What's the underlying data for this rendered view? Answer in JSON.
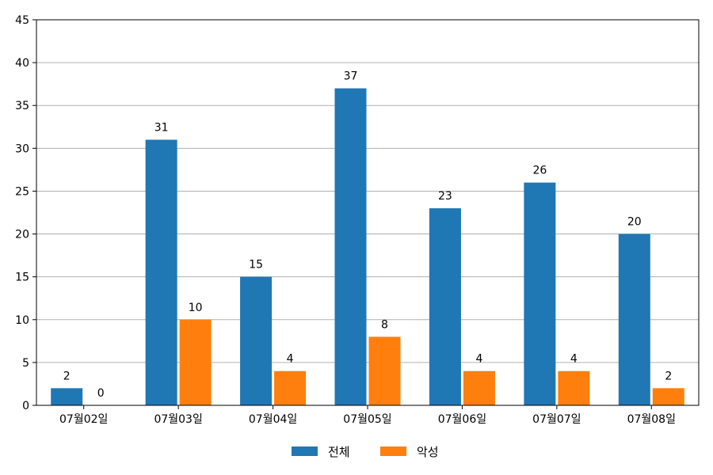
{
  "chart_data": {
    "type": "bar",
    "categories": [
      "07월02일",
      "07월03일",
      "07월04일",
      "07월05일",
      "07월06일",
      "07월07일",
      "07월08일"
    ],
    "series": [
      {
        "name": "전체",
        "color": "#1f77b4",
        "values": [
          2,
          31,
          15,
          37,
          23,
          26,
          20
        ]
      },
      {
        "name": "악성",
        "color": "#ff7f0e",
        "values": [
          0,
          10,
          4,
          8,
          4,
          4,
          2
        ]
      }
    ],
    "ylim": [
      0,
      45
    ],
    "yticks": [
      0,
      5,
      10,
      15,
      20,
      25,
      30,
      35,
      40,
      45
    ],
    "grid": true,
    "legend": "bottom-center",
    "data_labels": true
  }
}
